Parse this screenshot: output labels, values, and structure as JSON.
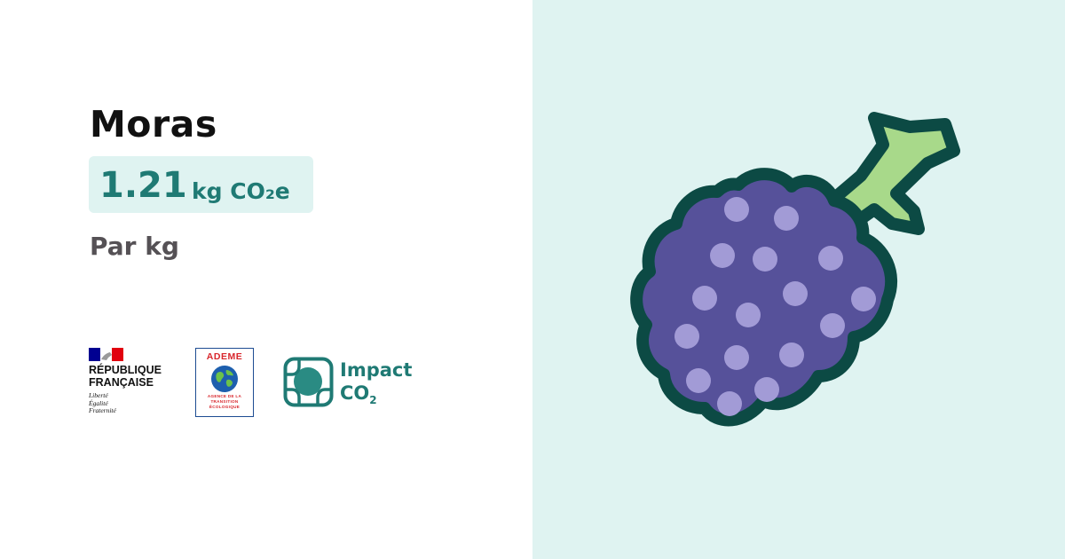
{
  "item": {
    "name": "Moras",
    "value": "1.21",
    "unit": "kg CO₂e",
    "per_unit": "Par kg"
  },
  "logos": {
    "republique": {
      "name": "RÉPUBLIQUE\nFRANÇAISE",
      "motto": "Liberté\nÉgalité\nFraternité"
    },
    "ademe": {
      "name": "ADEME",
      "tagline": "AGENCE DE LA\nTRANSITION\nÉCOLOGIQUE"
    },
    "impact_co2": {
      "line1": "Impact",
      "line2": "CO",
      "subscript": "2"
    }
  },
  "illustration": {
    "icon": "blackberry-icon"
  },
  "colors": {
    "accent": "#1f7a74",
    "accent_bg": "#dff3f1",
    "berry_fill": "#56519a",
    "berry_outline": "#0c4a44",
    "drupelet": "#a29bd6",
    "stem": "#a8d98a"
  }
}
